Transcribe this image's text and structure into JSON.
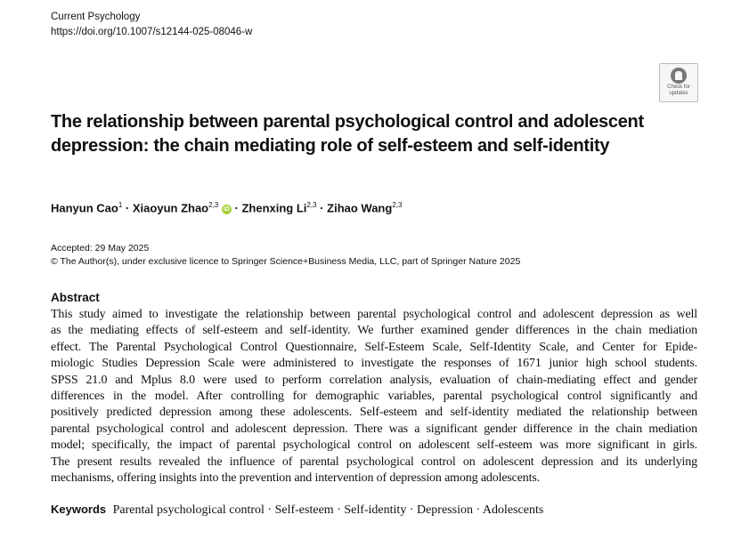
{
  "header": {
    "journal": "Current Psychology",
    "doi": "https://doi.org/10.1007/s12144-025-08046-w"
  },
  "badge": {
    "line1": "Check for",
    "line2": "updates",
    "icon": "check-for-updates-icon"
  },
  "title": "The relationship between parental psychological control and adolescent depression: the chain mediating role of self-esteem and self-identity",
  "authors": [
    {
      "name": "Hanyun Cao",
      "aff": "1"
    },
    {
      "name": "Xiaoyun Zhao",
      "aff": "2,3",
      "orcid": "iD"
    },
    {
      "name": "Zhenxing Li",
      "aff": "2,3"
    },
    {
      "name": "Zihao Wang",
      "aff": "2,3"
    }
  ],
  "separator": "·",
  "accepted": "Accepted: 29 May 2025",
  "copyright": "© The Author(s), under exclusive licence to Springer Science+Business Media, LLC, part of Springer Nature 2025",
  "abstract": {
    "heading": "Abstract",
    "lines": [
      "This study aimed to investigate the relationship between parental psychological control and adolescent depression as well",
      "as the mediating effects of self-esteem and self-identity. We further examined gender differences in the chain mediation",
      "effect. The Parental Psychological Control Questionnaire, Self-Esteem Scale, Self-Identity Scale, and Center for Epide-",
      "miologic Studies Depression Scale were administered to investigate the responses of 1671 junior high school students.",
      "SPSS 21.0 and Mplus 8.0 were used to perform correlation analysis, evaluation of chain-mediating effect and gender",
      "differences in the model. After controlling for demographic variables, parental psychological control significantly and",
      "positively predicted depression among these adolescents. Self-esteem and self-identity mediated the relationship between",
      "parental psychological control and adolescent depression. There was a significant gender difference in the chain mediation",
      "model; specifically, the impact of parental psychological control on adolescent self-esteem was more significant in girls.",
      "The present results revealed the influence of parental psychological control on adolescent depression and its underlying",
      "mechanisms, offering insights into the prevention and intervention of depression among adolescents."
    ]
  },
  "keywords": {
    "label": "Keywords",
    "text": "Parental psychological control · Self-esteem · Self-identity · Depression · Adolescents"
  }
}
